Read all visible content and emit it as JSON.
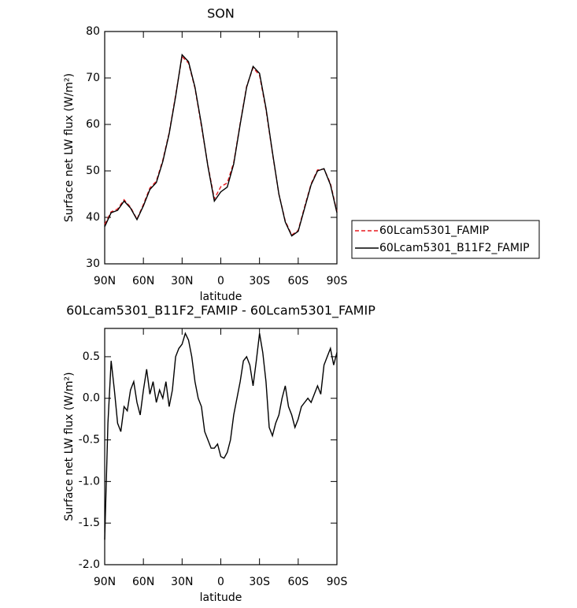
{
  "chart_data": [
    {
      "type": "line",
      "title": "SON",
      "xlabel": "latitude",
      "ylabel": "Surface net LW flux (W/m²)",
      "x": [
        90,
        85,
        80,
        75,
        70,
        65,
        60,
        55,
        50,
        45,
        40,
        35,
        30,
        25,
        20,
        15,
        10,
        5,
        0,
        -5,
        -10,
        -15,
        -20,
        -25,
        -30,
        -35,
        -40,
        -45,
        -50,
        -55,
        -60,
        -65,
        -70,
        -75,
        -80,
        -85,
        -90
      ],
      "xlim": [
        90,
        -90
      ],
      "xticks": [
        {
          "value": 90,
          "label": "90N"
        },
        {
          "value": 60,
          "label": "60N"
        },
        {
          "value": 30,
          "label": "30N"
        },
        0,
        {
          "value": -30,
          "label": "30S"
        },
        {
          "value": -60,
          "label": "60S"
        },
        {
          "value": -90,
          "label": "90S"
        }
      ],
      "ylim": [
        30,
        80
      ],
      "yticks": [
        30,
        40,
        50,
        60,
        70,
        80
      ],
      "legend": "right",
      "series": [
        {
          "name": "60Lcam5301_FAMIP",
          "color": "#e8191e",
          "dashed": true,
          "values": [
            38.5,
            41.2,
            41.8,
            43.8,
            42.2,
            39.6,
            42.8,
            46.3,
            47.8,
            52.3,
            58.2,
            66.3,
            74.6,
            73.2,
            67.8,
            59.6,
            51.2,
            44,
            46.6,
            47.4,
            51.8,
            60.2,
            68.2,
            72.2,
            70.6,
            63.2,
            53.8,
            45,
            39.2,
            36.2,
            37.2,
            42.3,
            47.2,
            50.2,
            50.4,
            47.3,
            41.2
          ]
        },
        {
          "name": "60Lcam5301_B11F2_FAMIP",
          "color": "#000000",
          "dashed": false,
          "values": [
            38,
            41,
            41.5,
            43.5,
            42,
            39.5,
            42.5,
            46,
            47.5,
            52,
            58,
            66,
            75,
            73.5,
            68,
            60,
            51,
            43.5,
            45.5,
            46.5,
            51.5,
            60,
            68,
            72.5,
            71,
            63.5,
            54,
            45,
            39,
            36,
            37,
            42,
            47,
            50,
            50.5,
            47,
            41
          ]
        }
      ]
    },
    {
      "type": "line",
      "title": "60Lcam5301_B11F2_FAMIP - 60Lcam5301_FAMIP",
      "xlabel": "latitude",
      "ylabel": "Surface net LW flux (W/m²)",
      "x": [
        90,
        87.5,
        85,
        82.5,
        80,
        77.5,
        75,
        72.5,
        70,
        67.5,
        65,
        62.5,
        60,
        57.5,
        55,
        52.5,
        50,
        47.5,
        45,
        42.5,
        40,
        37.5,
        35,
        32.5,
        30,
        27.5,
        25,
        22.5,
        20,
        17.5,
        15,
        12.5,
        10,
        7.5,
        5,
        2.5,
        0,
        -2.5,
        -5,
        -7.5,
        -10,
        -12.5,
        -15,
        -17.5,
        -20,
        -22.5,
        -25,
        -27.5,
        -30,
        -32.5,
        -35,
        -37.5,
        -40,
        -42.5,
        -45,
        -47.5,
        -50,
        -52.5,
        -55,
        -57.5,
        -60,
        -62.5,
        -65,
        -67.5,
        -70,
        -72.5,
        -75,
        -77.5,
        -80,
        -82.5,
        -85,
        -87.5,
        -90
      ],
      "values": [
        -1.7,
        -0.3,
        0.45,
        0.1,
        -0.3,
        -0.4,
        -0.1,
        -0.15,
        0.1,
        0.2,
        -0.05,
        -0.2,
        0.1,
        0.35,
        0.05,
        0.2,
        -0.05,
        0.1,
        0,
        0.2,
        -0.1,
        0.1,
        0.5,
        0.6,
        0.65,
        0.78,
        0.7,
        0.5,
        0.2,
        0,
        -0.1,
        -0.4,
        -0.5,
        -0.6,
        -0.6,
        -0.55,
        -0.7,
        -0.72,
        -0.65,
        -0.5,
        -0.2,
        0,
        0.2,
        0.45,
        0.5,
        0.4,
        0.15,
        0.45,
        0.78,
        0.55,
        0.2,
        -0.35,
        -0.45,
        -0.3,
        -0.2,
        0,
        0.15,
        -0.1,
        -0.2,
        -0.35,
        -0.25,
        -0.1,
        -0.05,
        0,
        -0.05,
        0.05,
        0.15,
        0.05,
        0.4,
        0.5,
        0.6,
        0.4,
        0.55
      ],
      "color": "#000000",
      "xlim": [
        90,
        -90
      ],
      "xticks": [
        {
          "value": 90,
          "label": "90N"
        },
        {
          "value": 60,
          "label": "60N"
        },
        {
          "value": 30,
          "label": "30N"
        },
        0,
        {
          "value": -30,
          "label": "30S"
        },
        {
          "value": -60,
          "label": "60S"
        },
        {
          "value": -90,
          "label": "90S"
        }
      ],
      "ylim": [
        -2.0,
        0.84
      ],
      "yticks": [
        {
          "value": -2,
          "label": "-2.0"
        },
        -1.5,
        {
          "value": -1,
          "label": "-1.0"
        },
        -0.5,
        {
          "value": 0,
          "label": "0.0"
        },
        0.5
      ]
    }
  ]
}
